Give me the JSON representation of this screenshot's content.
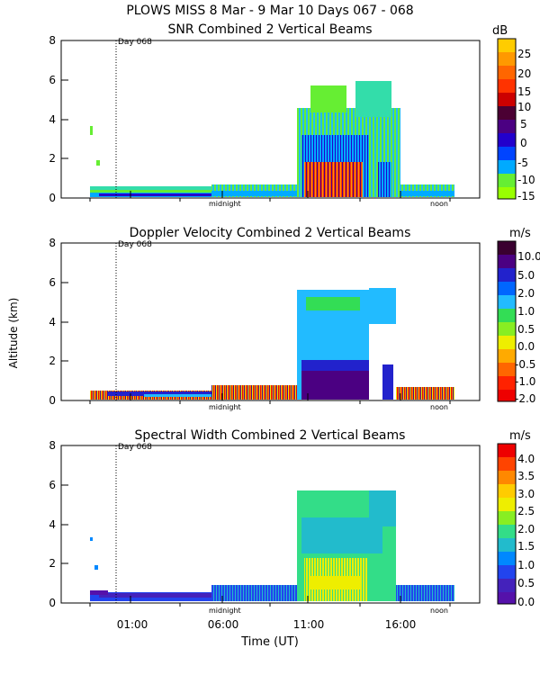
{
  "header": {
    "title": "PLOWS MISS   8 Mar -  9 Mar 10 Days 067 - 068"
  },
  "shared": {
    "ylabel": "Altitude (km)",
    "xlabel": "Time (UT)",
    "y_ticks": [
      "0",
      "2",
      "4",
      "6",
      "8"
    ],
    "x_ticks": [
      "01:00",
      "06:00",
      "11:00",
      "16:00"
    ],
    "day_marker": "Day 068",
    "midnight_label": "midnight",
    "noon_label": "noon"
  },
  "chart_data": [
    {
      "type": "heatmap",
      "title": "SNR Combined 2 Vertical Beams",
      "ylim": [
        0,
        8
      ],
      "colorbar": {
        "unit": "dB",
        "labels": [
          "25",
          "20",
          "15",
          "10",
          "5",
          "0",
          "-5",
          "-10",
          "-15"
        ],
        "colors": [
          "#ffcc00",
          "#ff9900",
          "#ff3300",
          "#cc0000",
          "#4b0033",
          "#4b0082",
          "#2200cc",
          "#0044ff",
          "#00aaff",
          "#33ddaa",
          "#66ee33",
          "#99ff00"
        ]
      }
    },
    {
      "type": "heatmap",
      "title": "Doppler Velocity Combined 2 Vertical Beams",
      "ylim": [
        0,
        8
      ],
      "colorbar": {
        "unit": "m/s",
        "labels": [
          "10.0",
          "5.0",
          "2.0",
          "1.0",
          "0.5",
          "0.0",
          "-0.5",
          "-1.0",
          "-2.0"
        ],
        "colors": [
          "#3a0030",
          "#4b0082",
          "#2222cc",
          "#0066ff",
          "#22bbff",
          "#33dd55",
          "#88ee22",
          "#eeee00",
          "#ffaa00",
          "#ff6600",
          "#ff2200",
          "#ee0000"
        ]
      }
    },
    {
      "type": "heatmap",
      "title": "Spectral Width Combined 2 Vertical Beams",
      "ylim": [
        0,
        8
      ],
      "colorbar": {
        "unit": "m/s",
        "labels": [
          "4.0",
          "3.5",
          "3.0",
          "2.5",
          "2.0",
          "1.5",
          "1.0",
          "0.5",
          "0.0"
        ],
        "colors": [
          "#ee0000",
          "#ff4400",
          "#ff8800",
          "#ffcc00",
          "#eeee00",
          "#88ee22",
          "#33dd88",
          "#22bbcc",
          "#0088ff",
          "#2244ee",
          "#4422bb",
          "#5511aa"
        ]
      }
    }
  ]
}
